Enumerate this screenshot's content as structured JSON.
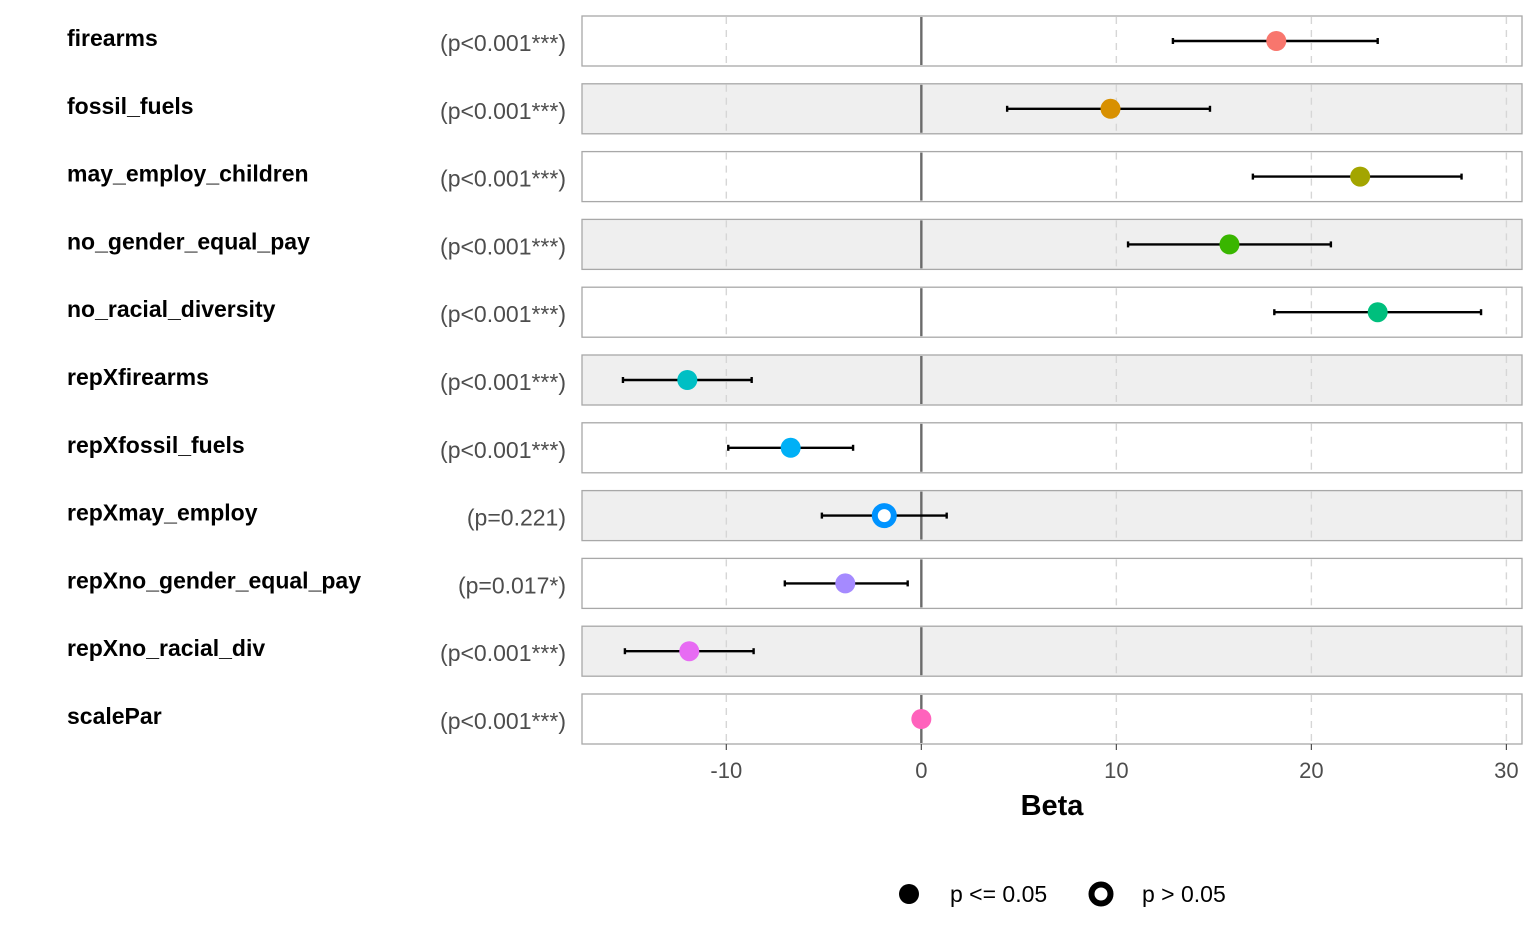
{
  "chart_data": {
    "type": "forest",
    "xlabel": "Beta",
    "xlim": [
      -17.4,
      30.8
    ],
    "xticks": [
      -10,
      0,
      10,
      20,
      30
    ],
    "xtick_labels": [
      "-10",
      "0",
      "10",
      "20",
      "30"
    ],
    "reference_line": 0,
    "gridlines": true,
    "row_shading": "alternating",
    "legend_position": "bottom",
    "legend": [
      {
        "label": "p <= 0.05",
        "marker": "filled"
      },
      {
        "label": "p > 0.05",
        "marker": "hollow"
      }
    ],
    "rows": [
      {
        "term": "firearms",
        "p_label": "(p<0.001***)",
        "estimate": 18.2,
        "ci_low": 12.9,
        "ci_high": 23.4,
        "significant": true,
        "color": "#F8766D"
      },
      {
        "term": "fossil_fuels",
        "p_label": "(p<0.001***)",
        "estimate": 9.7,
        "ci_low": 4.4,
        "ci_high": 14.8,
        "significant": true,
        "color": "#D89000"
      },
      {
        "term": "may_employ_children",
        "p_label": "(p<0.001***)",
        "estimate": 22.5,
        "ci_low": 17.0,
        "ci_high": 27.7,
        "significant": true,
        "color": "#A3A500"
      },
      {
        "term": "no_gender_equal_pay",
        "p_label": "(p<0.001***)",
        "estimate": 15.8,
        "ci_low": 10.6,
        "ci_high": 21.0,
        "significant": true,
        "color": "#39B600"
      },
      {
        "term": "no_racial_diversity",
        "p_label": "(p<0.001***)",
        "estimate": 23.4,
        "ci_low": 18.1,
        "ci_high": 28.7,
        "significant": true,
        "color": "#00BF7D"
      },
      {
        "term": "repXfirearms",
        "p_label": "(p<0.001***)",
        "estimate": -12.0,
        "ci_low": -15.3,
        "ci_high": -8.7,
        "significant": true,
        "color": "#00BFC4"
      },
      {
        "term": "repXfossil_fuels",
        "p_label": "(p<0.001***)",
        "estimate": -6.7,
        "ci_low": -9.9,
        "ci_high": -3.5,
        "significant": true,
        "color": "#00B0F6"
      },
      {
        "term": "repXmay_employ",
        "p_label": "(p=0.221)",
        "estimate": -1.9,
        "ci_low": -5.1,
        "ci_high": 1.3,
        "significant": false,
        "color": "#0093FF"
      },
      {
        "term": "repXno_gender_equal_pay",
        "p_label": "(p=0.017*)",
        "estimate": -3.9,
        "ci_low": -7.0,
        "ci_high": -0.7,
        "significant": true,
        "color": "#A58AFF"
      },
      {
        "term": "repXno_racial_div",
        "p_label": "(p<0.001***)",
        "estimate": -11.9,
        "ci_low": -15.2,
        "ci_high": -8.6,
        "significant": true,
        "color": "#E76BF3"
      },
      {
        "term": "scalePar",
        "p_label": "(p<0.001***)",
        "estimate": 0.0,
        "ci_low": 0.0,
        "ci_high": 0.0,
        "significant": true,
        "color": "#FF62BC"
      }
    ]
  }
}
